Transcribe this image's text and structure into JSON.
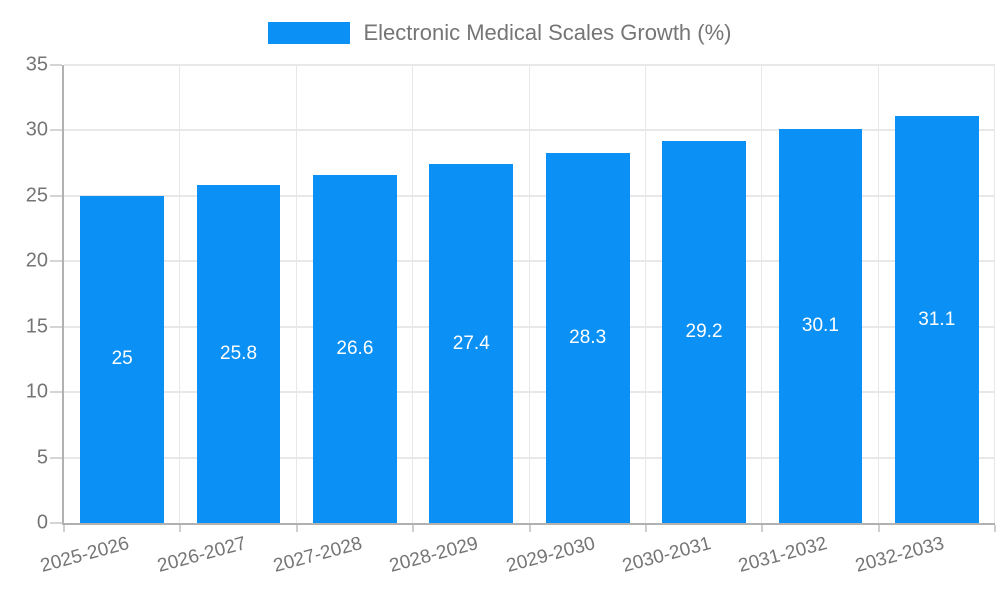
{
  "legend": {
    "swatch_icon": "bar-series-swatch"
  },
  "chart_data": {
    "type": "bar",
    "title": "Electronic Medical Scales Growth (%)",
    "xlabel": "",
    "ylabel": "",
    "categories": [
      "2025-2026",
      "2026-2027",
      "2027-2028",
      "2028-2029",
      "2029-2030",
      "2030-2031",
      "2031-2032",
      "2032-2033"
    ],
    "values": [
      25,
      25.8,
      26.6,
      27.4,
      28.3,
      29.2,
      30.1,
      31.1
    ],
    "value_labels": [
      "25",
      "25.8",
      "26.6",
      "27.4",
      "28.3",
      "29.2",
      "30.1",
      "31.1"
    ],
    "ylim": [
      0,
      35
    ],
    "yticks": [
      0,
      5,
      10,
      15,
      20,
      25,
      30,
      35
    ],
    "ytick_labels": [
      "0",
      "5",
      "10",
      "15",
      "20",
      "25",
      "30",
      "35"
    ],
    "grid": true,
    "legend_position": "top",
    "bar_color": "#0b90f5",
    "text_color": "#757575",
    "grid_color": "#e8e8e8",
    "axis_color": "#b1b1b1",
    "value_label_color": "#ffffff"
  }
}
